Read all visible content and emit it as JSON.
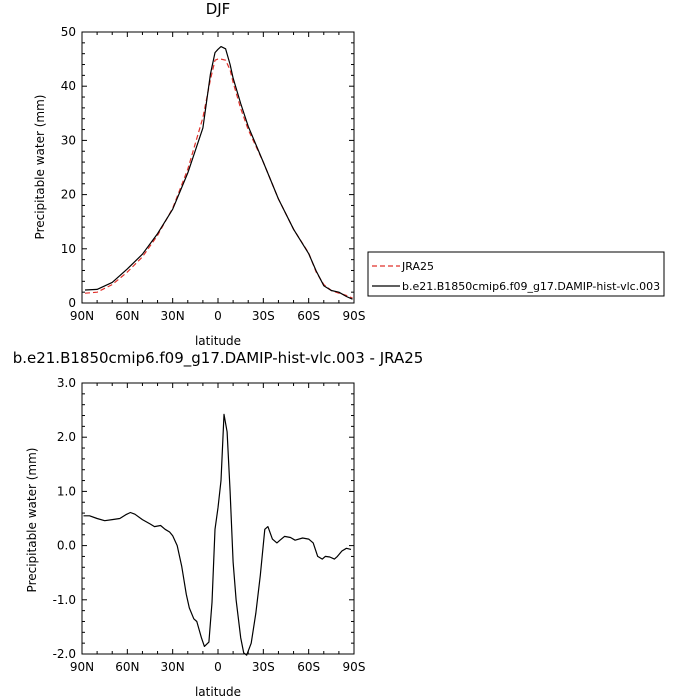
{
  "chart_data": [
    {
      "type": "line",
      "title": "DJF",
      "xlabel": "latitude",
      "ylabel": "Precipitable water (mm)",
      "xlim": [
        90,
        -90
      ],
      "ylim": [
        0,
        50
      ],
      "xticks": [
        90,
        60,
        30,
        0,
        -30,
        -60,
        -90
      ],
      "xtick_labels": [
        "90N",
        "60N",
        "30N",
        "0",
        "30S",
        "60S",
        "90S"
      ],
      "yticks": [
        0,
        10,
        20,
        30,
        40,
        50
      ],
      "ytick_labels": [
        "0",
        "10",
        "20",
        "30",
        "40",
        "50"
      ],
      "legend": {
        "placement": "right",
        "entries": [
          "JRA25",
          "b.e21.B1850cmip6.f09_g17.DAMIP-hist-vlc.003"
        ]
      },
      "series": [
        {
          "name": "JRA25",
          "color": "#e0302a",
          "dash": "dashed",
          "x": [
            88,
            80,
            70,
            60,
            50,
            40,
            30,
            20,
            10,
            5,
            2,
            0,
            -2,
            -5,
            -8,
            -10,
            -15,
            -20,
            -30,
            -40,
            -50,
            -60,
            -65,
            -70,
            -75,
            -80,
            -85,
            -89
          ],
          "y": [
            1.8,
            2.0,
            3.4,
            5.7,
            8.5,
            12.5,
            17.5,
            24.7,
            34.2,
            41.2,
            44.8,
            45.0,
            45.0,
            44.8,
            43.0,
            40.7,
            35.9,
            32.0,
            26.0,
            19.2,
            13.6,
            9.2,
            5.7,
            3.4,
            2.3,
            1.8,
            1.4,
            0.9
          ]
        },
        {
          "name": "b.e21.B1850cmip6.f09_g17.DAMIP-hist-vlc.003",
          "color": "#000000",
          "dash": "solid",
          "x": [
            88,
            80,
            70,
            60,
            50,
            40,
            30,
            20,
            10,
            5,
            2,
            0,
            -2,
            -5,
            -8,
            -10,
            -15,
            -20,
            -30,
            -40,
            -50,
            -60,
            -65,
            -70,
            -75,
            -80,
            -85,
            -89
          ],
          "y": [
            2.4,
            2.5,
            3.8,
            6.3,
            9.0,
            12.8,
            17.3,
            24.0,
            32.3,
            42.2,
            46.2,
            46.8,
            47.3,
            46.9,
            44.0,
            41.5,
            36.8,
            32.6,
            26.0,
            19.2,
            13.6,
            9.1,
            5.9,
            3.2,
            2.3,
            2.0,
            1.2,
            0.7
          ]
        }
      ]
    },
    {
      "type": "line",
      "title": "b.e21.B1850cmip6.f09_g17.DAMIP-hist-vlc.003 - JRA25",
      "xlabel": "latitude",
      "ylabel": "Precipitable water (mm)",
      "xlim": [
        90,
        -90
      ],
      "ylim": [
        -2,
        3
      ],
      "xticks": [
        90,
        60,
        30,
        0,
        -30,
        -60,
        -90
      ],
      "xtick_labels": [
        "90N",
        "60N",
        "30N",
        "0",
        "30S",
        "60S",
        "90S"
      ],
      "yticks": [
        -2,
        -1,
        0,
        1,
        2,
        3
      ],
      "ytick_labels": [
        "-2.0",
        "-1.0",
        "0.0",
        "1.0",
        "2.0",
        "3.0"
      ],
      "series": [
        {
          "color": "#000000",
          "dash": "solid",
          "x": [
            89,
            85,
            80,
            75,
            70,
            65,
            61,
            58,
            55,
            50,
            45,
            42,
            38,
            35,
            32,
            30,
            27,
            24,
            21,
            19,
            16,
            14,
            11,
            9,
            6,
            4,
            2,
            0,
            -2,
            -4,
            -6,
            -8,
            -10,
            -12,
            -15,
            -17,
            -19,
            -22,
            -25,
            -28,
            -31,
            -33,
            -36,
            -39,
            -41,
            -44,
            -48,
            -51,
            -56,
            -60,
            -63,
            -66,
            -69,
            -71,
            -74,
            -77,
            -79,
            -82,
            -85,
            -88
          ],
          "y": [
            0.55,
            0.55,
            0.5,
            0.46,
            0.48,
            0.5,
            0.57,
            0.61,
            0.58,
            0.48,
            0.4,
            0.35,
            0.37,
            0.3,
            0.25,
            0.18,
            0.0,
            -0.38,
            -0.9,
            -1.15,
            -1.35,
            -1.4,
            -1.7,
            -1.86,
            -1.78,
            -1.05,
            0.3,
            0.7,
            1.2,
            2.42,
            2.1,
            1.0,
            -0.3,
            -1.0,
            -1.7,
            -1.98,
            -2.02,
            -1.8,
            -1.25,
            -0.55,
            0.3,
            0.35,
            0.12,
            0.05,
            0.1,
            0.17,
            0.15,
            0.1,
            0.14,
            0.12,
            0.05,
            -0.2,
            -0.25,
            -0.2,
            -0.21,
            -0.25,
            -0.2,
            -0.1,
            -0.05,
            -0.07
          ]
        }
      ]
    }
  ]
}
